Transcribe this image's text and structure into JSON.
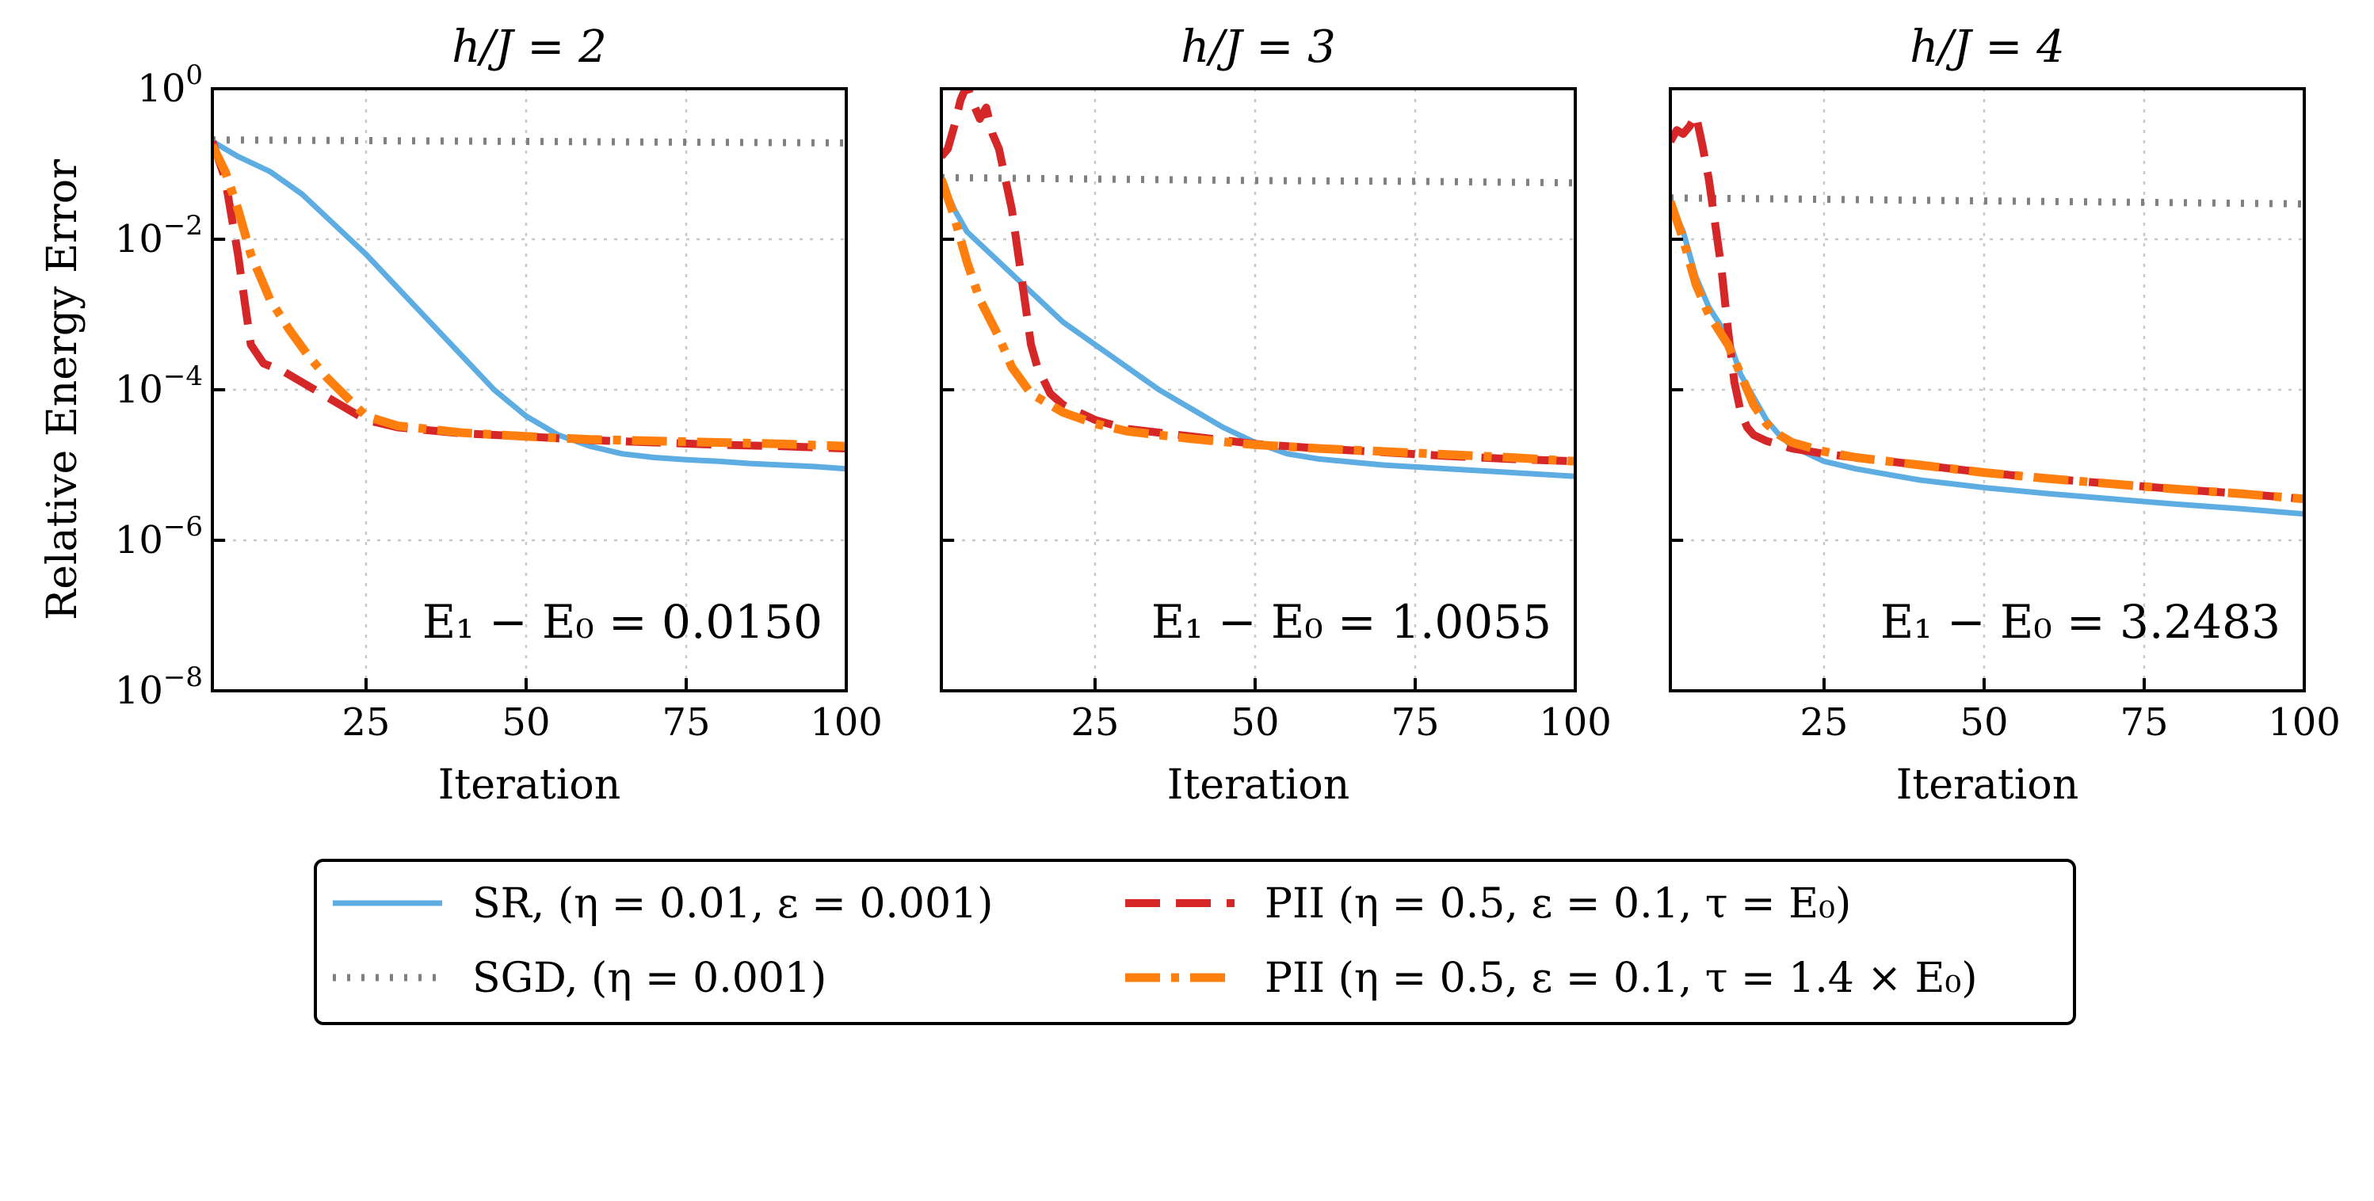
{
  "chart_data": [
    {
      "type": "line",
      "title": "h/J = 2",
      "xlabel": "Iteration",
      "ylabel": "Relative Energy Error",
      "xlim": [
        1,
        100
      ],
      "ylim_exponent": [
        -8,
        0
      ],
      "yscale": "log",
      "grid": true,
      "xticks": [
        25,
        50,
        75,
        100
      ],
      "yticks": [
        "10^0",
        "10^-2",
        "10^-4",
        "10^-6",
        "10^-8"
      ],
      "annotation": "E₁ − E₀ = 0.0150",
      "series": [
        {
          "name": "SR, (η = 0.01, ε = 0.001)",
          "x": [
            1,
            5,
            10,
            15,
            20,
            25,
            30,
            35,
            40,
            45,
            50,
            55,
            60,
            65,
            70,
            75,
            80,
            85,
            90,
            95,
            100
          ],
          "log10y": [
            -0.7,
            -0.9,
            -1.1,
            -1.4,
            -1.8,
            -2.2,
            -2.65,
            -3.1,
            -3.55,
            -4.0,
            -4.35,
            -4.6,
            -4.75,
            -4.85,
            -4.9,
            -4.93,
            -4.95,
            -4.98,
            -5.0,
            -5.02,
            -5.05
          ]
        },
        {
          "name": "SGD, (η = 0.001)",
          "x": [
            1,
            25,
            50,
            75,
            100
          ],
          "log10y": [
            -0.68,
            -0.69,
            -0.7,
            -0.71,
            -0.72
          ]
        },
        {
          "name": "PII (η = 0.5, ε = 0.1, τ = E₀)",
          "x": [
            1,
            3,
            5,
            7,
            9,
            12,
            15,
            18,
            20,
            22,
            25,
            30,
            40,
            50,
            60,
            70,
            80,
            90,
            100
          ],
          "log10y": [
            -0.7,
            -1.2,
            -2.2,
            -3.4,
            -3.65,
            -3.75,
            -3.9,
            -4.05,
            -4.15,
            -4.25,
            -4.4,
            -4.5,
            -4.58,
            -4.62,
            -4.67,
            -4.7,
            -4.73,
            -4.75,
            -4.78
          ]
        },
        {
          "name": "PII (η = 0.5, ε = 0.1, τ = 1.4 × E₀)",
          "x": [
            1,
            3,
            5,
            7,
            10,
            13,
            16,
            19,
            22,
            25,
            30,
            40,
            50,
            60,
            70,
            80,
            90,
            100
          ],
          "log10y": [
            -0.75,
            -1.1,
            -1.6,
            -2.2,
            -2.8,
            -3.2,
            -3.55,
            -3.85,
            -4.1,
            -4.35,
            -4.48,
            -4.57,
            -4.62,
            -4.66,
            -4.68,
            -4.7,
            -4.72,
            -4.75
          ]
        }
      ]
    },
    {
      "type": "line",
      "title": "h/J = 3",
      "xlabel": "Iteration",
      "ylabel": "",
      "xlim": [
        1,
        100
      ],
      "ylim_exponent": [
        -8,
        0
      ],
      "yscale": "log",
      "grid": true,
      "xticks": [
        25,
        50,
        75,
        100
      ],
      "annotation": "E₁ − E₀ = 1.0055",
      "series": [
        {
          "name": "SR, (η = 0.01, ε = 0.001)",
          "x": [
            1,
            3,
            5,
            10,
            15,
            20,
            25,
            30,
            35,
            40,
            45,
            50,
            55,
            60,
            70,
            80,
            90,
            100
          ],
          "log10y": [
            -1.2,
            -1.6,
            -1.9,
            -2.3,
            -2.7,
            -3.1,
            -3.4,
            -3.7,
            -4.0,
            -4.25,
            -4.5,
            -4.7,
            -4.85,
            -4.92,
            -5.0,
            -5.05,
            -5.1,
            -5.15
          ]
        },
        {
          "name": "SGD, (η = 0.001)",
          "x": [
            1,
            25,
            50,
            75,
            100
          ],
          "log10y": [
            -1.18,
            -1.2,
            -1.22,
            -1.23,
            -1.25
          ]
        },
        {
          "name": "PII (η = 0.5, ε = 0.1, τ = E₀)",
          "x": [
            1,
            2,
            3,
            4,
            5,
            6,
            7,
            8,
            9,
            10,
            11,
            12,
            13,
            14,
            15,
            16,
            18,
            20,
            25,
            30,
            40,
            50,
            60,
            70,
            80,
            90,
            100
          ],
          "log10y": [
            -0.9,
            -0.8,
            -0.5,
            -0.15,
            0.05,
            -0.2,
            -0.4,
            -0.25,
            -0.6,
            -0.8,
            -1.2,
            -1.6,
            -2.2,
            -2.8,
            -3.4,
            -3.7,
            -4.05,
            -4.2,
            -4.4,
            -4.52,
            -4.62,
            -4.72,
            -4.78,
            -4.83,
            -4.88,
            -4.92,
            -4.95
          ]
        },
        {
          "name": "PII (η = 0.5, ε = 0.1, τ = 1.4 × E₀)",
          "x": [
            1,
            3,
            5,
            7,
            10,
            12,
            15,
            18,
            20,
            25,
            30,
            40,
            50,
            60,
            70,
            80,
            90,
            100
          ],
          "log10y": [
            -1.2,
            -1.7,
            -2.3,
            -2.8,
            -3.3,
            -3.7,
            -4.05,
            -4.2,
            -4.3,
            -4.45,
            -4.55,
            -4.65,
            -4.73,
            -4.78,
            -4.82,
            -4.86,
            -4.9,
            -4.95
          ]
        }
      ]
    },
    {
      "type": "line",
      "title": "h/J = 4",
      "xlabel": "Iteration",
      "ylabel": "",
      "xlim": [
        1,
        100
      ],
      "ylim_exponent": [
        -8,
        0
      ],
      "yscale": "log",
      "grid": true,
      "xticks": [
        25,
        50,
        75,
        100
      ],
      "annotation": "E₁ − E₀ = 3.2483",
      "series": [
        {
          "name": "SR, (η = 0.01, ε = 0.001)",
          "x": [
            1,
            3,
            5,
            7,
            10,
            12,
            14,
            16,
            18,
            20,
            25,
            30,
            40,
            50,
            60,
            70,
            80,
            90,
            100
          ],
          "log10y": [
            -1.5,
            -1.9,
            -2.5,
            -2.9,
            -3.3,
            -3.8,
            -4.1,
            -4.4,
            -4.6,
            -4.75,
            -4.95,
            -5.05,
            -5.2,
            -5.3,
            -5.38,
            -5.45,
            -5.52,
            -5.58,
            -5.65
          ]
        },
        {
          "name": "SGD, (η = 0.001)",
          "x": [
            1,
            25,
            50,
            75,
            100
          ],
          "log10y": [
            -1.45,
            -1.47,
            -1.49,
            -1.51,
            -1.53
          ]
        },
        {
          "name": "PII (η = 0.5, ε = 0.1, τ = E₀)",
          "x": [
            1,
            2,
            3,
            4,
            5,
            6,
            7,
            8,
            9,
            10,
            11,
            12,
            13,
            14,
            16,
            18,
            20,
            25,
            30,
            40,
            50,
            60,
            70,
            80,
            90,
            100
          ],
          "log10y": [
            -0.7,
            -0.55,
            -0.6,
            -0.5,
            -0.35,
            -0.75,
            -1.2,
            -1.8,
            -2.4,
            -3.2,
            -3.9,
            -4.3,
            -4.5,
            -4.6,
            -4.68,
            -4.73,
            -4.78,
            -4.85,
            -4.9,
            -5.0,
            -5.1,
            -5.18,
            -5.25,
            -5.32,
            -5.38,
            -5.45
          ]
        },
        {
          "name": "PII (η = 0.5, ε = 0.1, τ = 1.4 × E₀)",
          "x": [
            1,
            3,
            5,
            7,
            10,
            12,
            14,
            16,
            18,
            20,
            25,
            30,
            40,
            50,
            60,
            70,
            80,
            90,
            100
          ],
          "log10y": [
            -1.5,
            -2.0,
            -2.6,
            -3.0,
            -3.4,
            -3.8,
            -4.2,
            -4.45,
            -4.6,
            -4.7,
            -4.82,
            -4.9,
            -5.0,
            -5.1,
            -5.18,
            -5.25,
            -5.32,
            -5.38,
            -5.45
          ]
        }
      ]
    }
  ],
  "legend": {
    "placement": "bottom-center",
    "entries": [
      {
        "label": "SR, (η = 0.01,  ε = 0.001)",
        "color": "#5dade2",
        "style": "solid"
      },
      {
        "label": "SGD, (η = 0.001)",
        "color": "#808080",
        "style": "dotted"
      },
      {
        "label": "PII (η = 0.5,  ε = 0.1,  τ = E₀)",
        "color": "#d62728",
        "style": "dashed"
      },
      {
        "label": "PII (η = 0.5,  ε = 0.1,  τ = 1.4 × E₀)",
        "color": "#ff7f0e",
        "style": "dashdot"
      }
    ]
  },
  "ytick_labels": {
    "base": "10",
    "exponents": [
      "0",
      "−2",
      "−4",
      "−6",
      "−8"
    ]
  },
  "colors": {
    "sr": "#5dade2",
    "sgd": "#808080",
    "pii": "#d62728",
    "pii14": "#ff7f0e"
  }
}
